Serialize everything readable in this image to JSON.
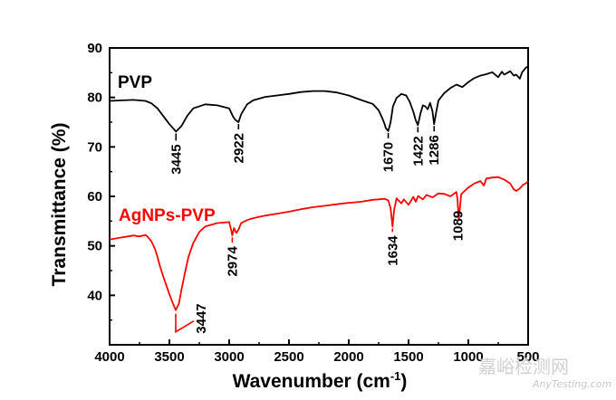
{
  "chart_data": {
    "type": "line",
    "xlabel": "Wavenumber (cm",
    "xlabel_sup": "-1",
    "xlabel_end": ")",
    "ylabel": "Transmittance (%)",
    "xlim": [
      4000,
      500
    ],
    "ylim": [
      30,
      90
    ],
    "xticks": [
      4000,
      3500,
      3000,
      2500,
      2000,
      1500,
      1000,
      500
    ],
    "yticks": [
      40,
      50,
      60,
      70,
      80,
      90
    ],
    "series": [
      {
        "name": "PVP",
        "color": "#000000",
        "points": [
          [
            4000,
            79.3
          ],
          [
            3900,
            79.4
          ],
          [
            3800,
            79.5
          ],
          [
            3700,
            79.3
          ],
          [
            3650,
            78.8
          ],
          [
            3600,
            77.8
          ],
          [
            3550,
            76.2
          ],
          [
            3500,
            74.6
          ],
          [
            3445,
            73.1
          ],
          [
            3400,
            74.2
          ],
          [
            3350,
            76.3
          ],
          [
            3300,
            77.8
          ],
          [
            3200,
            78.6
          ],
          [
            3100,
            78.4
          ],
          [
            3000,
            77.8
          ],
          [
            2970,
            76.2
          ],
          [
            2950,
            75.5
          ],
          [
            2922,
            75.0
          ],
          [
            2900,
            76.6
          ],
          [
            2880,
            77.4
          ],
          [
            2850,
            78.6
          ],
          [
            2800,
            79.4
          ],
          [
            2700,
            80.1
          ],
          [
            2600,
            80.4
          ],
          [
            2500,
            80.7
          ],
          [
            2400,
            81.1
          ],
          [
            2300,
            81.3
          ],
          [
            2200,
            81.3
          ],
          [
            2100,
            81.0
          ],
          [
            2000,
            80.4
          ],
          [
            1900,
            79.5
          ],
          [
            1800,
            78.7
          ],
          [
            1750,
            77.4
          ],
          [
            1720,
            75.8
          ],
          [
            1700,
            74.6
          ],
          [
            1690,
            73.8
          ],
          [
            1670,
            73.2
          ],
          [
            1650,
            75.0
          ],
          [
            1630,
            78.2
          ],
          [
            1600,
            79.9
          ],
          [
            1560,
            80.7
          ],
          [
            1520,
            80.4
          ],
          [
            1490,
            79.1
          ],
          [
            1460,
            77.1
          ],
          [
            1440,
            75.4
          ],
          [
            1422,
            74.4
          ],
          [
            1400,
            76.8
          ],
          [
            1380,
            78.4
          ],
          [
            1360,
            78.2
          ],
          [
            1340,
            77.6
          ],
          [
            1320,
            78.9
          ],
          [
            1300,
            77.2
          ],
          [
            1286,
            74.6
          ],
          [
            1270,
            76.9
          ],
          [
            1250,
            79.4
          ],
          [
            1200,
            80.9
          ],
          [
            1150,
            81.9
          ],
          [
            1100,
            82.6
          ],
          [
            1050,
            82.1
          ],
          [
            1000,
            83.1
          ],
          [
            950,
            83.9
          ],
          [
            900,
            84.4
          ],
          [
            850,
            84.7
          ],
          [
            800,
            85.1
          ],
          [
            750,
            84.1
          ],
          [
            720,
            85.2
          ],
          [
            700,
            84.6
          ],
          [
            650,
            85.3
          ],
          [
            620,
            84.4
          ],
          [
            600,
            84.6
          ],
          [
            570,
            83.8
          ],
          [
            550,
            85.1
          ],
          [
            520,
            86.0
          ],
          [
            500,
            86.3
          ]
        ]
      },
      {
        "name": "AgNPs-PVP",
        "color": "#ff0000",
        "points": [
          [
            4000,
            51.3
          ],
          [
            3950,
            51.5
          ],
          [
            3900,
            51.7
          ],
          [
            3850,
            51.9
          ],
          [
            3800,
            52.1
          ],
          [
            3750,
            51.9
          ],
          [
            3700,
            52.2
          ],
          [
            3680,
            51.8
          ],
          [
            3650,
            50.9
          ],
          [
            3620,
            49.3
          ],
          [
            3600,
            47.8
          ],
          [
            3580,
            46.0
          ],
          [
            3550,
            43.7
          ],
          [
            3520,
            41.6
          ],
          [
            3500,
            40.2
          ],
          [
            3470,
            38.3
          ],
          [
            3447,
            37.0
          ],
          [
            3420,
            38.4
          ],
          [
            3400,
            41.0
          ],
          [
            3370,
            44.6
          ],
          [
            3340,
            47.8
          ],
          [
            3300,
            50.6
          ],
          [
            3250,
            52.8
          ],
          [
            3200,
            53.9
          ],
          [
            3100,
            54.6
          ],
          [
            3000,
            54.8
          ],
          [
            2980,
            52.9
          ],
          [
            2974,
            52.1
          ],
          [
            2960,
            53.6
          ],
          [
            2940,
            52.6
          ],
          [
            2920,
            53.4
          ],
          [
            2900,
            54.6
          ],
          [
            2850,
            55.2
          ],
          [
            2800,
            55.6
          ],
          [
            2700,
            56.1
          ],
          [
            2600,
            56.5
          ],
          [
            2500,
            56.9
          ],
          [
            2400,
            57.4
          ],
          [
            2300,
            57.8
          ],
          [
            2200,
            58.1
          ],
          [
            2100,
            58.4
          ],
          [
            2000,
            58.7
          ],
          [
            1900,
            58.9
          ],
          [
            1800,
            59.3
          ],
          [
            1750,
            59.4
          ],
          [
            1700,
            59.5
          ],
          [
            1670,
            59.2
          ],
          [
            1650,
            57.6
          ],
          [
            1634,
            53.9
          ],
          [
            1620,
            57.4
          ],
          [
            1600,
            59.6
          ],
          [
            1560,
            58.6
          ],
          [
            1540,
            59.4
          ],
          [
            1500,
            58.3
          ],
          [
            1460,
            59.9
          ],
          [
            1440,
            58.9
          ],
          [
            1420,
            60.1
          ],
          [
            1380,
            59.4
          ],
          [
            1350,
            60.3
          ],
          [
            1300,
            59.8
          ],
          [
            1250,
            60.6
          ],
          [
            1200,
            60.5
          ],
          [
            1150,
            60.0
          ],
          [
            1100,
            60.9
          ],
          [
            1090,
            59.3
          ],
          [
            1080,
            55.2
          ],
          [
            1070,
            57.8
          ],
          [
            1060,
            60.4
          ],
          [
            1040,
            60.9
          ],
          [
            1000,
            61.8
          ],
          [
            950,
            62.6
          ],
          [
            900,
            63.1
          ],
          [
            870,
            62.2
          ],
          [
            850,
            63.6
          ],
          [
            800,
            63.8
          ],
          [
            750,
            63.9
          ],
          [
            700,
            63.4
          ],
          [
            650,
            62.6
          ],
          [
            620,
            61.4
          ],
          [
            600,
            61.1
          ],
          [
            570,
            61.6
          ],
          [
            540,
            62.4
          ],
          [
            520,
            62.6
          ],
          [
            500,
            63.1
          ]
        ]
      }
    ],
    "peak_labels": [
      {
        "series": "PVP",
        "x": 3445,
        "text": "3445"
      },
      {
        "series": "PVP",
        "x": 2922,
        "text": "2922"
      },
      {
        "series": "PVP",
        "x": 1670,
        "text": "1670"
      },
      {
        "series": "PVP",
        "x": 1422,
        "text": "1422"
      },
      {
        "series": "PVP",
        "x": 1286,
        "text": "1286"
      },
      {
        "series": "AgNPs-PVP",
        "x": 3447,
        "text": "3447"
      },
      {
        "series": "AgNPs-PVP",
        "x": 2974,
        "text": "2974"
      },
      {
        "series": "AgNPs-PVP",
        "x": 1634,
        "text": "1634"
      },
      {
        "series": "AgNPs-PVP",
        "x": 1089,
        "text": "1089"
      }
    ]
  },
  "watermark": {
    "cn": "嘉峪检测网",
    "en": "AnyTesting.com"
  }
}
